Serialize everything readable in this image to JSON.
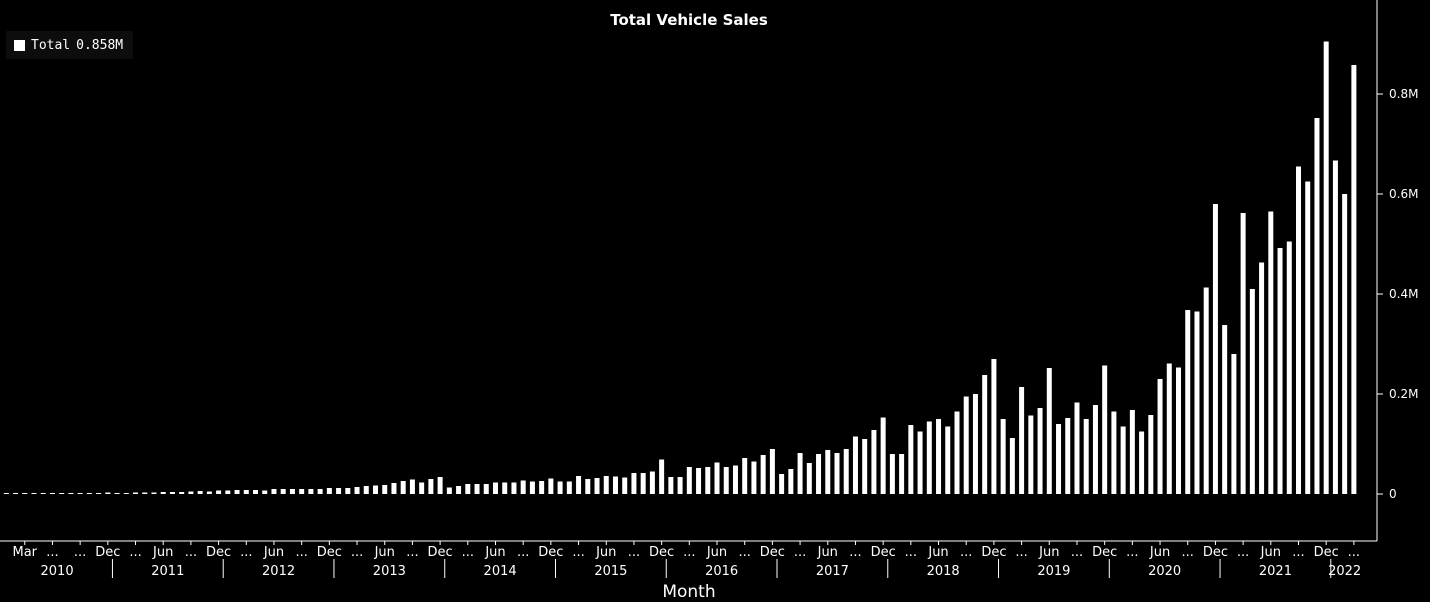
{
  "chart_data": {
    "type": "bar",
    "title": "Total Vehicle Sales",
    "xlabel": "Month",
    "ylabel": "",
    "ylim": [
      0,
      0.9
    ],
    "y_axis_side": "right",
    "y_ticks": [
      0,
      0.2,
      0.4,
      0.6,
      0.8
    ],
    "y_tick_labels": [
      "0",
      "0.2M",
      "0.4M",
      "0.6M",
      "0.8M"
    ],
    "bar_color": "#ffffff",
    "background": "#000000",
    "legend": {
      "position": "top-left",
      "label": "Total",
      "value": "0.858M"
    },
    "x_start": "2010-01",
    "month_tick_labels": [
      "Mar",
      "...",
      "...",
      "Dec",
      "...",
      "Jun",
      "...",
      "Dec",
      "...",
      "Jun",
      "...",
      "Dec",
      "...",
      "Jun",
      "...",
      "Dec",
      "...",
      "Jun",
      "...",
      "Dec",
      "...",
      "Jun",
      "...",
      "Dec",
      "...",
      "Jun",
      "...",
      "Dec",
      "...",
      "Jun",
      "...",
      "Dec",
      "...",
      "Jun",
      "...",
      "Dec",
      "...",
      "Jun",
      "...",
      "Dec",
      "...",
      "Jun",
      "...",
      "Dec",
      "...",
      "Jun",
      "...",
      "Dec",
      "..."
    ],
    "years": [
      "2010",
      "2011",
      "2012",
      "2013",
      "2014",
      "2015",
      "2016",
      "2017",
      "2018",
      "2019",
      "2020",
      "2021",
      "2022"
    ],
    "values": [
      0.001,
      0.001,
      0.001,
      0.001,
      0.001,
      0.001,
      0.001,
      0.001,
      0.001,
      0.001,
      0.002,
      0.003,
      0.002,
      0.002,
      0.003,
      0.003,
      0.003,
      0.004,
      0.004,
      0.004,
      0.005,
      0.006,
      0.005,
      0.007,
      0.007,
      0.008,
      0.008,
      0.008,
      0.007,
      0.01,
      0.01,
      0.01,
      0.01,
      0.01,
      0.01,
      0.012,
      0.012,
      0.012,
      0.014,
      0.016,
      0.017,
      0.018,
      0.022,
      0.026,
      0.029,
      0.023,
      0.03,
      0.034,
      0.013,
      0.016,
      0.02,
      0.02,
      0.02,
      0.023,
      0.023,
      0.023,
      0.027,
      0.025,
      0.026,
      0.031,
      0.025,
      0.025,
      0.036,
      0.03,
      0.032,
      0.036,
      0.035,
      0.033,
      0.042,
      0.042,
      0.045,
      0.069,
      0.034,
      0.034,
      0.054,
      0.052,
      0.054,
      0.063,
      0.054,
      0.057,
      0.072,
      0.065,
      0.078,
      0.09,
      0.04,
      0.05,
      0.082,
      0.062,
      0.08,
      0.088,
      0.082,
      0.09,
      0.115,
      0.11,
      0.128,
      0.153,
      0.08,
      0.08,
      0.138,
      0.125,
      0.145,
      0.15,
      0.135,
      0.165,
      0.195,
      0.2,
      0.238,
      0.27,
      0.15,
      0.112,
      0.214,
      0.157,
      0.172,
      0.252,
      0.14,
      0.152,
      0.183,
      0.15,
      0.178,
      0.257,
      0.165,
      0.135,
      0.168,
      0.125,
      0.158,
      0.23,
      0.261,
      0.253,
      0.368,
      0.365,
      0.413,
      0.58,
      0.338,
      0.28,
      0.562,
      0.41,
      0.463,
      0.565,
      0.492,
      0.505,
      0.655,
      0.625,
      0.752,
      0.905,
      0.667,
      0.6,
      0.858
    ]
  }
}
